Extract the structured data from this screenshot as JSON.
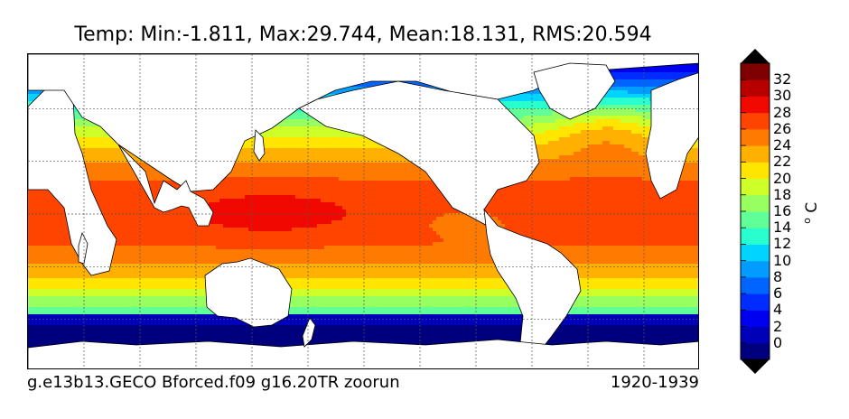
{
  "chart_data": {
    "type": "heatmap",
    "title": "Temp: Min:-1.811, Max:29.744, Mean:18.131, RMS:20.594",
    "stats": {
      "min": -1.811,
      "max": 29.744,
      "mean": 18.131,
      "rms": 20.594
    },
    "caption_left": "g.e13b13.GECO Bforced.f09 g16.20TR zoorun",
    "caption_right": "1920-1939",
    "colorbar": {
      "label": "°C",
      "label_display": "o C",
      "ticks": [
        "0",
        "2",
        "4",
        "6",
        "8",
        "10",
        "12",
        "14",
        "16",
        "18",
        "20",
        "22",
        "24",
        "26",
        "28",
        "30",
        "32"
      ],
      "levels": [
        -2,
        0,
        2,
        4,
        6,
        8,
        10,
        12,
        14,
        16,
        18,
        20,
        22,
        24,
        26,
        28,
        30,
        32,
        34
      ],
      "colors": [
        "#00007f",
        "#0000b8",
        "#0000f1",
        "#002cff",
        "#0064ff",
        "#009cff",
        "#00d4ff",
        "#29ffce",
        "#60ff97",
        "#97ff60",
        "#ceff29",
        "#ffe500",
        "#ffb000",
        "#ff7a00",
        "#ff4400",
        "#f10800",
        "#b80000",
        "#7f0000"
      ],
      "extend": "both"
    },
    "grid": true
  }
}
